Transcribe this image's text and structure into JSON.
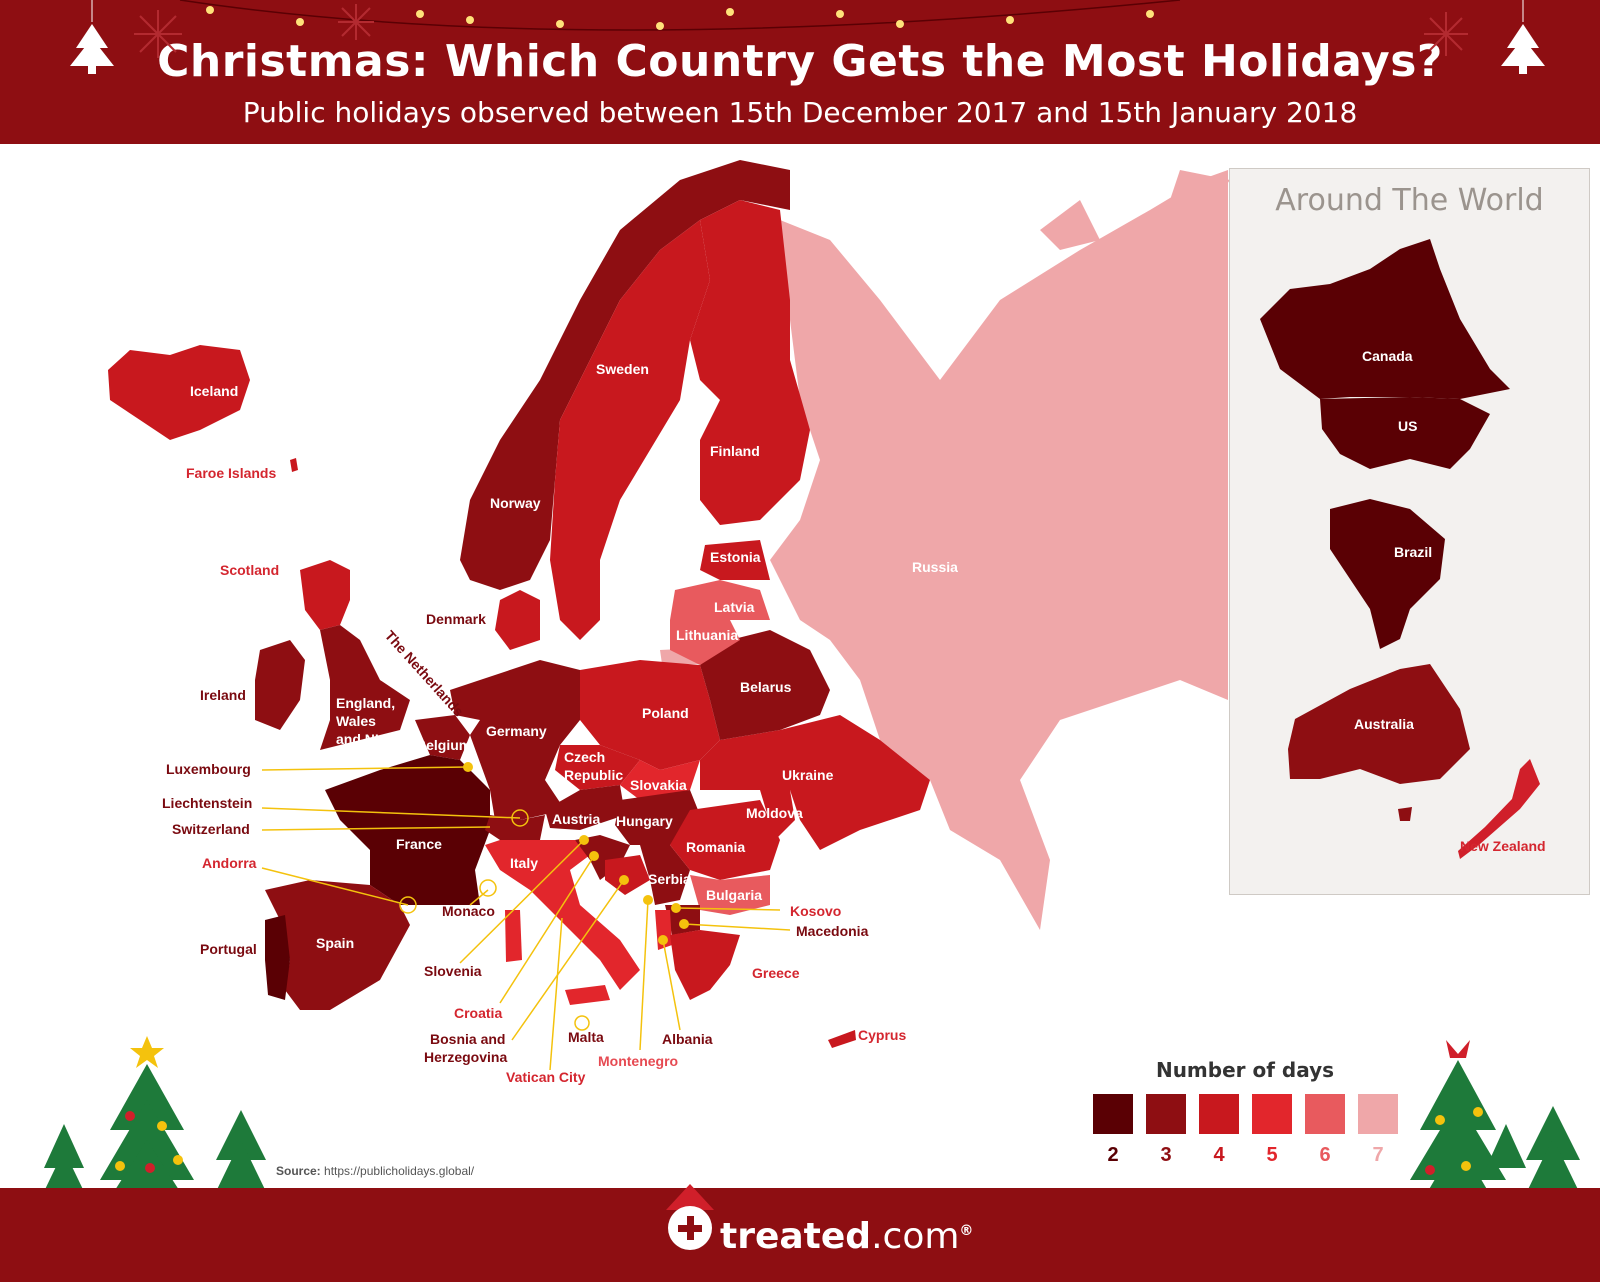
{
  "header": {
    "title": "Christmas: Which Country Gets the Most Holidays?",
    "subtitle": "Public holidays observed between 15th December 2017 and 15th January 2018"
  },
  "inset": {
    "title": "Around The World"
  },
  "legend": {
    "title": "Number of days",
    "items": [
      {
        "value": "2",
        "color": "#5a0004"
      },
      {
        "value": "3",
        "color": "#8e0e12"
      },
      {
        "value": "4",
        "color": "#c8181e"
      },
      {
        "value": "5",
        "color": "#e2262c"
      },
      {
        "value": "6",
        "color": "#e85a5e"
      },
      {
        "value": "7",
        "color": "#efa7a9"
      }
    ]
  },
  "countries": {
    "iceland": "Iceland",
    "faroe": "Faroe Islands",
    "scotland": "Scotland",
    "ireland": "Ireland",
    "england": "England,",
    "england2": "Wales",
    "england3": "and NI",
    "denmark": "Denmark",
    "netherlands": "The Netherlands",
    "belgium": "Belgium",
    "luxembourg": "Luxembourg",
    "liechtenstein": "Liechtenstein",
    "switzerland": "Switzerland",
    "andorra": "Andorra",
    "france": "France",
    "monaco": "Monaco",
    "portugal": "Portugal",
    "spain": "Spain",
    "germany": "Germany",
    "czech": "Czech",
    "czech2": "Republic",
    "austria": "Austria",
    "slovakia": "Slovakia",
    "hungary": "Hungary",
    "italy": "Italy",
    "slovenia": "Slovenia",
    "croatia": "Croatia",
    "bosnia": "Bosnia and",
    "bosnia2": "Herzegovina",
    "malta": "Malta",
    "vatican": "Vatican City",
    "montenegro": "Montenegro",
    "albania": "Albania",
    "serbia": "Serbia",
    "kosovo": "Kosovo",
    "macedonia": "Macedonia",
    "bulgaria": "Bulgaria",
    "greece": "Greece",
    "cyprus": "Cyprus",
    "romania": "Romania",
    "moldova": "Moldova",
    "ukraine": "Ukraine",
    "poland": "Poland",
    "belarus": "Belarus",
    "lithuania": "Lithuania",
    "latvia": "Latvia",
    "estonia": "Estonia",
    "finland": "Finland",
    "sweden": "Sweden",
    "norway": "Norway",
    "russia": "Russia",
    "canada": "Canada",
    "us": "US",
    "brazil": "Brazil",
    "australia": "Australia",
    "newzealand": "New Zealand"
  },
  "source": {
    "label": "Source:",
    "url": "https://publicholidays.global/"
  },
  "brand": {
    "name": "treated",
    "tld": ".com",
    "mark": "®"
  }
}
